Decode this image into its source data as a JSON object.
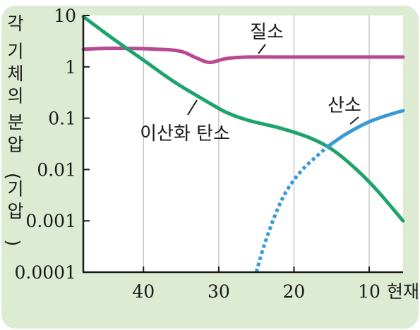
{
  "chart_data": {
    "type": "line",
    "ylabel": "각 기체의 분압(기압)",
    "xlabel_suffix": "현재",
    "x_axis": {
      "ticks": [
        40,
        30,
        20,
        10
      ],
      "tick_labels": [
        "40",
        "30",
        "20",
        "10"
      ],
      "range": [
        48,
        5.5
      ],
      "direction": "decreasing"
    },
    "y_axis": {
      "scale": "log",
      "range": [
        0.0001,
        10
      ],
      "ticks": [
        10,
        1,
        0.1,
        0.01,
        0.001,
        0.0001
      ],
      "tick_labels": [
        "10",
        "1",
        "0.1",
        "0.01",
        "0.001",
        "0.0001"
      ]
    },
    "grid": "vertical",
    "colors": {
      "nitrogen": "#b74a91",
      "co2": "#1fa36d",
      "oxygen": "#3a9ad6",
      "background": "#dcebd1",
      "plot_area": "#ffffff",
      "axis": "#1a1a1a"
    },
    "series": [
      {
        "name": "질소",
        "color": "#b74a91",
        "style": "solid",
        "points": [
          [
            48,
            2.2
          ],
          [
            44,
            2.3
          ],
          [
            38,
            2.2
          ],
          [
            35,
            2.0
          ],
          [
            33,
            1.5
          ],
          [
            31.2,
            1.22
          ],
          [
            29,
            1.45
          ],
          [
            26,
            1.55
          ],
          [
            20,
            1.55
          ],
          [
            5.5,
            1.55
          ]
        ]
      },
      {
        "name": "이산화 탄소",
        "color": "#1fa36d",
        "style": "solid",
        "points": [
          [
            48,
            9.5
          ],
          [
            44,
            3.5
          ],
          [
            40,
            1.35
          ],
          [
            36,
            0.52
          ],
          [
            32,
            0.23
          ],
          [
            29,
            0.13
          ],
          [
            26,
            0.09
          ],
          [
            22,
            0.065
          ],
          [
            18,
            0.042
          ],
          [
            15,
            0.025
          ],
          [
            12,
            0.011
          ],
          [
            9,
            0.004
          ],
          [
            5.5,
            0.001
          ]
        ]
      },
      {
        "name": "산소",
        "color": "#3a9ad6",
        "style": "dotted",
        "points": [
          [
            25,
            0.0001
          ],
          [
            24,
            0.00032
          ],
          [
            22.5,
            0.0013
          ],
          [
            21,
            0.0038
          ],
          [
            19,
            0.0095
          ],
          [
            17,
            0.018
          ],
          [
            15.5,
            0.028
          ]
        ]
      },
      {
        "name": "산소",
        "color": "#3a9ad6",
        "style": "solid",
        "points": [
          [
            15.5,
            0.028
          ],
          [
            13,
            0.05
          ],
          [
            10,
            0.085
          ],
          [
            7.5,
            0.115
          ],
          [
            5.5,
            0.14
          ]
        ]
      }
    ],
    "annotations": [
      {
        "text": "질소",
        "series": 0
      },
      {
        "text": "이산화 탄소",
        "series": 1
      },
      {
        "text": "산소",
        "series": 2
      }
    ]
  }
}
